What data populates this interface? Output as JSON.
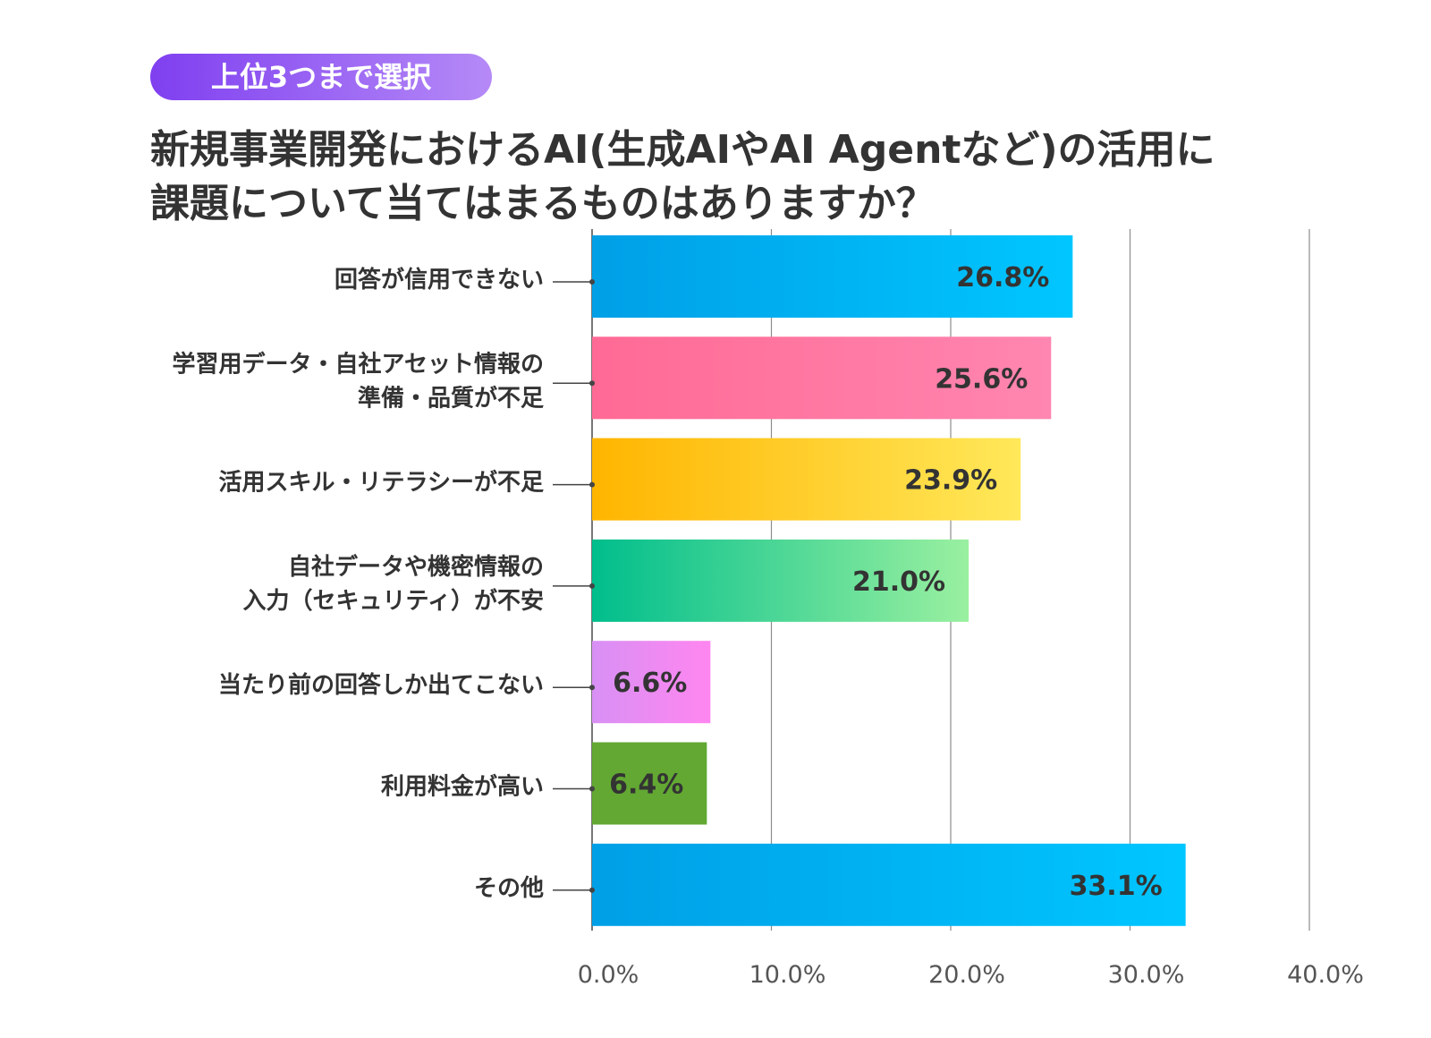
{
  "badge": {
    "label": "上位3つまで選択"
  },
  "title": {
    "line1": "新規事業開発におけるAI(生成AIやAI Agentなど)の活用に",
    "line2": "課題について当てはまるものはありますか？"
  },
  "chart_data": {
    "type": "bar",
    "orientation": "horizontal",
    "title": "",
    "xlabel": "",
    "ylabel": "",
    "categories": [
      [
        "回答が信用できない"
      ],
      [
        "学習用データ・自社アセット情報の",
        "準備・品質が不足"
      ],
      [
        "活用スキル・リテラシーが不足"
      ],
      [
        "自社データや機密情報の",
        "入力（セキュリティ）が不安"
      ],
      [
        "当たり前の回答しか出てこない"
      ],
      [
        "利用料金が高い"
      ],
      [
        "その他"
      ]
    ],
    "values": [
      26.8,
      25.6,
      23.9,
      21.0,
      6.6,
      6.4,
      33.1
    ],
    "data_labels": [
      "26.8%",
      "25.6%",
      "23.9%",
      "21.0%",
      "6.6%",
      "6.4%",
      "33.1%"
    ],
    "xlim": [
      0,
      40
    ],
    "xticks": [
      0,
      10,
      20,
      30,
      40
    ],
    "xtick_labels": [
      "0.0%",
      "10.0%",
      "20.0%",
      "30.0%",
      "40.0%"
    ],
    "grid": "vertical",
    "bar_colors": [
      [
        "#009fe6",
        "#00c6ff"
      ],
      [
        "#ff6a95",
        "#ff86b0"
      ],
      [
        "#ffb500",
        "#ffe85a"
      ],
      [
        "#00be8c",
        "#9af0a0"
      ],
      [
        "#d890f4",
        "#ff86f0"
      ],
      [
        "#62a833",
        "#62a833"
      ],
      [
        "#009fe6",
        "#00c6ff"
      ]
    ]
  }
}
